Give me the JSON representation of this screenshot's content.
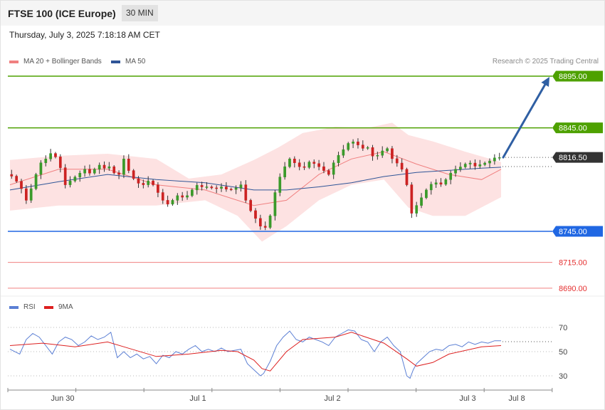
{
  "header": {
    "title": "FTSE 100 (ICE Europe)",
    "timeframe": "30 MIN"
  },
  "timestamp": "Thursday, July 3, 2025 7:18:18 AM CET",
  "legend": {
    "items": [
      {
        "label": "MA 20 + Bollinger Bands",
        "color": "#f08080"
      },
      {
        "label": "MA 50",
        "color": "#2f5597"
      }
    ],
    "credit": "Research © 2025 Trading Central"
  },
  "rsi_legend": {
    "items": [
      {
        "label": "RSI",
        "color": "#5b7fd4"
      },
      {
        "label": "9MA",
        "color": "#dd2020"
      }
    ]
  },
  "colors": {
    "resistance": "#4ea100",
    "support": "#2067e3",
    "support_light": "#f08080",
    "current": "#333333",
    "arrow": "#2f5fa3",
    "candle_up": "#3a9a2a",
    "candle_down": "#cc2222"
  },
  "chart_data": [
    {
      "type": "candlestick",
      "title": "FTSE 100 (ICE Europe)",
      "timeframe": "30 MIN",
      "ylim": [
        8680,
        8905
      ],
      "x_ticks": [
        "Jun 30",
        "Jul 1",
        "Jul 2",
        "Jul 3",
        "Jul 8"
      ],
      "price_levels": [
        {
          "label": "8895.00",
          "value": 8895.0,
          "kind": "resistance",
          "color": "#4ea100"
        },
        {
          "label": "8845.00",
          "value": 8845.0,
          "kind": "resistance",
          "color": "#4ea100"
        },
        {
          "label": "8816.50",
          "value": 8816.5,
          "kind": "current",
          "color": "#333333"
        },
        {
          "label": "8745.00",
          "value": 8745.0,
          "kind": "pivot",
          "color": "#2067e3"
        },
        {
          "label": "8715.00",
          "value": 8715.0,
          "kind": "support",
          "color": "#f08080"
        },
        {
          "label": "8690.00",
          "value": 8690.0,
          "kind": "support",
          "color": "#f08080"
        }
      ],
      "close_path": [
        [
          0,
          8800
        ],
        [
          6,
          8790
        ],
        [
          10,
          8775
        ],
        [
          14,
          8790
        ],
        [
          18,
          8810
        ],
        [
          22,
          8815
        ],
        [
          26,
          8822
        ],
        [
          30,
          8812
        ],
        [
          34,
          8790
        ],
        [
          38,
          8795
        ],
        [
          42,
          8800
        ],
        [
          46,
          8805
        ],
        [
          50,
          8800
        ],
        [
          54,
          8810
        ],
        [
          58,
          8806
        ],
        [
          62,
          8808
        ],
        [
          66,
          8795
        ],
        [
          70,
          8815
        ],
        [
          74,
          8800
        ],
        [
          78,
          8792
        ],
        [
          82,
          8790
        ],
        [
          86,
          8795
        ],
        [
          90,
          8785
        ],
        [
          94,
          8775
        ],
        [
          98,
          8770
        ],
        [
          102,
          8780
        ],
        [
          106,
          8778
        ],
        [
          110,
          8780
        ],
        [
          114,
          8790
        ],
        [
          118,
          8788
        ],
        [
          122,
          8788
        ],
        [
          126,
          8786
        ],
        [
          130,
          8788
        ],
        [
          134,
          8785
        ],
        [
          138,
          8786
        ],
        [
          142,
          8790
        ],
        [
          146,
          8770
        ],
        [
          150,
          8760
        ],
        [
          154,
          8750
        ],
        [
          156,
          8745
        ],
        [
          160,
          8760
        ],
        [
          164,
          8790
        ],
        [
          168,
          8805
        ],
        [
          172,
          8815
        ],
        [
          176,
          8810
        ],
        [
          180,
          8805
        ],
        [
          184,
          8812
        ],
        [
          188,
          8810
        ],
        [
          192,
          8805
        ],
        [
          196,
          8800
        ],
        [
          200,
          8815
        ],
        [
          204,
          8822
        ],
        [
          208,
          8830
        ],
        [
          212,
          8832
        ],
        [
          216,
          8825
        ],
        [
          220,
          8826
        ],
        [
          224,
          8815
        ],
        [
          228,
          8822
        ],
        [
          232,
          8825
        ],
        [
          236,
          8812
        ],
        [
          240,
          8810
        ],
        [
          244,
          8790
        ],
        [
          246,
          8765
        ],
        [
          248,
          8760
        ],
        [
          250,
          8770
        ],
        [
          254,
          8780
        ],
        [
          258,
          8790
        ],
        [
          262,
          8792
        ],
        [
          266,
          8790
        ],
        [
          270,
          8800
        ],
        [
          274,
          8805
        ],
        [
          278,
          8808
        ],
        [
          282,
          8812
        ],
        [
          286,
          8808
        ],
        [
          290,
          8810
        ],
        [
          294,
          8812
        ],
        [
          298,
          8816
        ],
        [
          302,
          8816.5
        ]
      ],
      "ma20_path": [
        [
          0,
          8790
        ],
        [
          30,
          8805
        ],
        [
          60,
          8805
        ],
        [
          90,
          8790
        ],
        [
          120,
          8785
        ],
        [
          150,
          8770
        ],
        [
          170,
          8775
        ],
        [
          190,
          8800
        ],
        [
          210,
          8815
        ],
        [
          230,
          8822
        ],
        [
          250,
          8810
        ],
        [
          270,
          8800
        ],
        [
          290,
          8795
        ],
        [
          302,
          8805
        ]
      ],
      "ma50_path": [
        [
          0,
          8785
        ],
        [
          30,
          8793
        ],
        [
          60,
          8800
        ],
        [
          90,
          8795
        ],
        [
          120,
          8792
        ],
        [
          150,
          8785
        ],
        [
          170,
          8785
        ],
        [
          190,
          8788
        ],
        [
          210,
          8792
        ],
        [
          230,
          8798
        ],
        [
          250,
          8802
        ],
        [
          270,
          8804
        ],
        [
          290,
          8806
        ],
        [
          302,
          8807
        ]
      ],
      "bollinger_band": {
        "upper": [
          [
            0,
            8814
          ],
          [
            30,
            8818
          ],
          [
            60,
            8820
          ],
          [
            90,
            8815
          ],
          [
            110,
            8796
          ],
          [
            130,
            8800
          ],
          [
            150,
            8814
          ],
          [
            165,
            8826
          ],
          [
            180,
            8840
          ],
          [
            200,
            8846
          ],
          [
            220,
            8845
          ],
          [
            235,
            8850
          ],
          [
            245,
            8838
          ],
          [
            260,
            8832
          ],
          [
            280,
            8822
          ],
          [
            302,
            8812
          ]
        ],
        "lower": [
          [
            0,
            8765
          ],
          [
            30,
            8770
          ],
          [
            60,
            8770
          ],
          [
            90,
            8770
          ],
          [
            120,
            8775
          ],
          [
            140,
            8760
          ],
          [
            155,
            8735
          ],
          [
            170,
            8750
          ],
          [
            190,
            8775
          ],
          [
            210,
            8790
          ],
          [
            230,
            8795
          ],
          [
            245,
            8768
          ],
          [
            260,
            8760
          ],
          [
            280,
            8760
          ],
          [
            302,
            8778
          ]
        ]
      },
      "projection": {
        "from": [
          302,
          8816.5
        ],
        "to": [
          340,
          8895
        ]
      }
    },
    {
      "type": "line",
      "title": "RSI",
      "ylim": [
        18,
        82
      ],
      "y_ticks": [
        70,
        50,
        30
      ],
      "series": [
        {
          "name": "RSI",
          "color": "#5b7fd4",
          "values": [
            [
              0,
              52
            ],
            [
              6,
              48
            ],
            [
              10,
              60
            ],
            [
              14,
              65
            ],
            [
              18,
              62
            ],
            [
              22,
              55
            ],
            [
              26,
              48
            ],
            [
              30,
              58
            ],
            [
              34,
              62
            ],
            [
              38,
              60
            ],
            [
              42,
              55
            ],
            [
              46,
              58
            ],
            [
              50,
              63
            ],
            [
              54,
              60
            ],
            [
              58,
              62
            ],
            [
              62,
              66
            ],
            [
              66,
              45
            ],
            [
              70,
              50
            ],
            [
              74,
              45
            ],
            [
              78,
              48
            ],
            [
              82,
              44
            ],
            [
              86,
              46
            ],
            [
              90,
              40
            ],
            [
              94,
              47
            ],
            [
              98,
              45
            ],
            [
              102,
              50
            ],
            [
              106,
              48
            ],
            [
              110,
              52
            ],
            [
              114,
              55
            ],
            [
              118,
              50
            ],
            [
              122,
              52
            ],
            [
              126,
              50
            ],
            [
              130,
              53
            ],
            [
              134,
              50
            ],
            [
              138,
              51
            ],
            [
              142,
              52
            ],
            [
              146,
              40
            ],
            [
              150,
              35
            ],
            [
              154,
              30
            ],
            [
              156,
              32
            ],
            [
              160,
              42
            ],
            [
              164,
              55
            ],
            [
              168,
              62
            ],
            [
              172,
              67
            ],
            [
              176,
              60
            ],
            [
              180,
              58
            ],
            [
              184,
              62
            ],
            [
              188,
              60
            ],
            [
              192,
              58
            ],
            [
              196,
              55
            ],
            [
              200,
              62
            ],
            [
              204,
              65
            ],
            [
              208,
              68
            ],
            [
              212,
              67
            ],
            [
              216,
              60
            ],
            [
              220,
              58
            ],
            [
              224,
              50
            ],
            [
              228,
              58
            ],
            [
              232,
              62
            ],
            [
              236,
              55
            ],
            [
              240,
              50
            ],
            [
              244,
              30
            ],
            [
              246,
              28
            ],
            [
              248,
              35
            ],
            [
              250,
              40
            ],
            [
              254,
              45
            ],
            [
              258,
              50
            ],
            [
              262,
              52
            ],
            [
              266,
              51
            ],
            [
              270,
              55
            ],
            [
              274,
              56
            ],
            [
              278,
              54
            ],
            [
              282,
              58
            ],
            [
              286,
              56
            ],
            [
              290,
              58
            ],
            [
              294,
              57
            ],
            [
              298,
              59
            ],
            [
              302,
              59
            ]
          ]
        },
        {
          "name": "9MA",
          "color": "#dd2020",
          "values": [
            [
              0,
              55
            ],
            [
              20,
              57
            ],
            [
              40,
              54
            ],
            [
              60,
              58
            ],
            [
              70,
              54
            ],
            [
              90,
              46
            ],
            [
              110,
              48
            ],
            [
              130,
              51
            ],
            [
              140,
              50
            ],
            [
              150,
              43
            ],
            [
              155,
              36
            ],
            [
              160,
              34
            ],
            [
              170,
              50
            ],
            [
              180,
              60
            ],
            [
              200,
              62
            ],
            [
              210,
              66
            ],
            [
              230,
              57
            ],
            [
              244,
              44
            ],
            [
              250,
              38
            ],
            [
              260,
              41
            ],
            [
              270,
              48
            ],
            [
              290,
              54
            ],
            [
              302,
              55
            ]
          ]
        }
      ]
    }
  ]
}
